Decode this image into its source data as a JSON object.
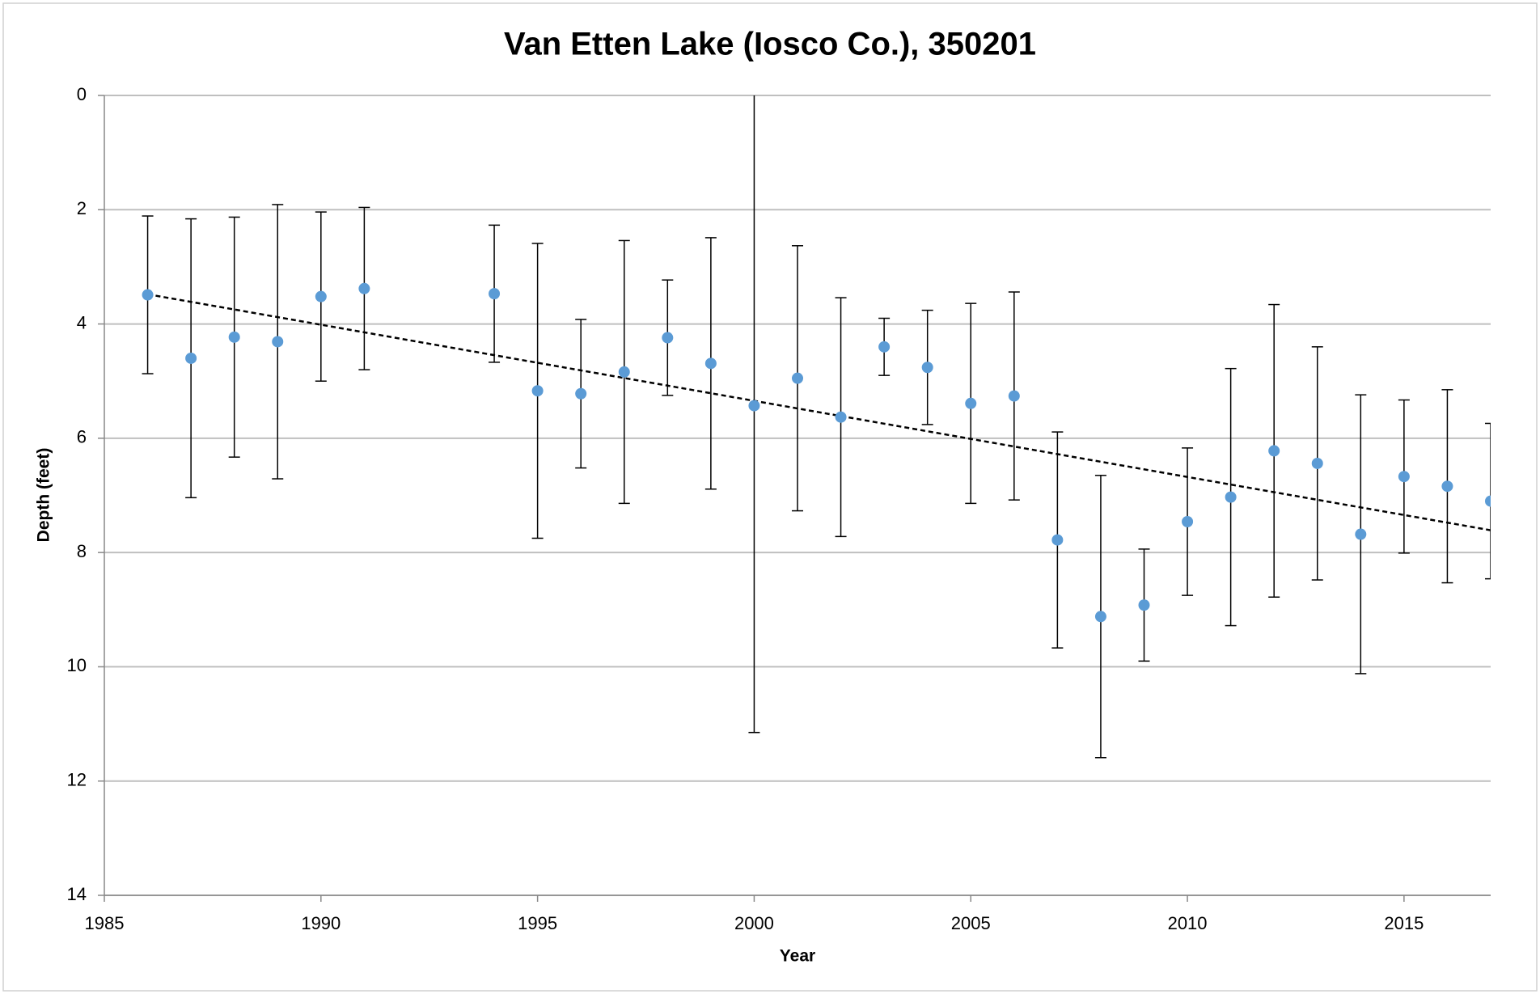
{
  "chart_data": {
    "type": "scatter",
    "title": "Van Etten Lake (Iosco Co.), 350201",
    "x_label": "Year",
    "y_label": "Depth (feet)",
    "x": [
      1986,
      1987,
      1988,
      1989,
      1990,
      1991,
      1994,
      1995,
      1996,
      1997,
      1998,
      1999,
      2000,
      2001,
      2002,
      2003,
      2004,
      2005,
      2006,
      2007,
      2008,
      2009,
      2010,
      2011,
      2012,
      2013,
      2014,
      2015,
      2016,
      2017
    ],
    "series": [
      {
        "color": "#5b9bd5",
        "values": [
          3.49,
          4.6,
          4.23,
          4.31,
          3.52,
          3.38,
          3.47,
          5.17,
          5.22,
          4.84,
          4.24,
          4.69,
          5.43,
          4.95,
          5.63,
          4.4,
          4.76,
          5.39,
          5.26,
          7.78,
          9.12,
          8.92,
          7.46,
          7.03,
          6.22,
          6.44,
          7.68,
          6.67,
          6.84,
          7.1
        ],
        "errors": [
          1.38,
          2.44,
          2.1,
          2.4,
          1.48,
          1.42,
          1.2,
          2.58,
          1.3,
          2.3,
          1.01,
          2.2,
          5.72,
          2.32,
          2.09,
          0.5,
          1.0,
          1.75,
          1.82,
          1.89,
          2.47,
          0.98,
          1.29,
          2.25,
          2.56,
          2.04,
          2.44,
          1.34,
          1.69,
          1.36
        ]
      }
    ],
    "trendline": {
      "x": [
        1986,
        2017
      ],
      "values": [
        3.48,
        7.61
      ],
      "color": "#000000",
      "dashed": true
    },
    "xlim": [
      1985,
      2017
    ],
    "xticks": [
      1985,
      1990,
      1995,
      2000,
      2005,
      2010,
      2015
    ],
    "ylim": [
      0,
      14
    ],
    "yticks": [
      0,
      2,
      4,
      6,
      8,
      10,
      12,
      14
    ],
    "y_inverted": true,
    "grid": true
  }
}
